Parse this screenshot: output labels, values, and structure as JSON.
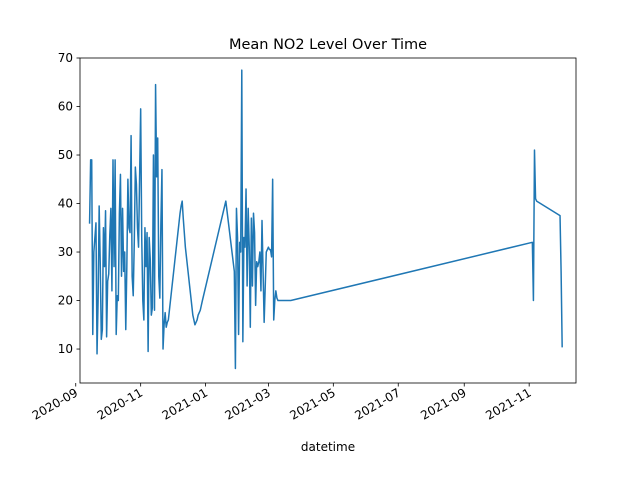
{
  "chart_data": {
    "type": "line",
    "title": "Mean NO2 Level Over Time",
    "xlabel": "datetime",
    "ylabel": "",
    "ylim": [
      3,
      70
    ],
    "xlim": [
      "2020-09-05",
      "2021-12-15"
    ],
    "grid": false,
    "legend": "none",
    "colors": {
      "line": "#1f77b4",
      "axes": "#000000",
      "background": "#ffffff"
    },
    "x_tick_labels": [
      "2020-09",
      "2020-11",
      "2021-01",
      "2021-03",
      "2021-05",
      "2021-07",
      "2021-09",
      "2021-11"
    ],
    "y_tick_labels": [
      "10",
      "20",
      "30",
      "40",
      "50",
      "60",
      "70"
    ],
    "series": [
      {
        "x": [
          "2020-09-14",
          "2020-09-15",
          "2020-09-16",
          "2020-09-17",
          "2020-09-18",
          "2020-09-20",
          "2020-09-21",
          "2020-09-22",
          "2020-09-23",
          "2020-09-24",
          "2020-09-25",
          "2020-09-26",
          "2020-09-27",
          "2020-09-28",
          "2020-09-29",
          "2020-09-30",
          "2020-10-01",
          "2020-10-02",
          "2020-10-03",
          "2020-10-04",
          "2020-10-05",
          "2020-10-06",
          "2020-10-07",
          "2020-10-08",
          "2020-10-09",
          "2020-10-10",
          "2020-10-11",
          "2020-10-12",
          "2020-10-13",
          "2020-10-14",
          "2020-10-15",
          "2020-10-16",
          "2020-10-17",
          "2020-10-18",
          "2020-10-19",
          "2020-10-20",
          "2020-10-21",
          "2020-10-22",
          "2020-10-23",
          "2020-10-24",
          "2020-10-25",
          "2020-10-26",
          "2020-10-27",
          "2020-10-28",
          "2020-10-29",
          "2020-10-30",
          "2020-10-31",
          "2020-11-01",
          "2020-11-02",
          "2020-11-03",
          "2020-11-04",
          "2020-11-05",
          "2020-11-06",
          "2020-11-07",
          "2020-11-08",
          "2020-11-09",
          "2020-11-10",
          "2020-11-11",
          "2020-11-12",
          "2020-11-13",
          "2020-11-14",
          "2020-11-15",
          "2020-11-16",
          "2020-11-17",
          "2020-11-18",
          "2020-11-19",
          "2020-11-20",
          "2020-11-21",
          "2020-11-22",
          "2020-11-23",
          "2020-11-24",
          "2020-11-25",
          "2020-11-26",
          "2020-11-27",
          "2020-11-28",
          "2020-11-29",
          "2020-11-30",
          "2020-12-01",
          "2020-12-02",
          "2020-12-03",
          "2020-12-04",
          "2020-12-05",
          "2020-12-06",
          "2020-12-07",
          "2020-12-08",
          "2020-12-09",
          "2020-12-10",
          "2020-12-11",
          "2020-12-12",
          "2020-12-13",
          "2020-12-14",
          "2020-12-15",
          "2020-12-16",
          "2020-12-17",
          "2020-12-18",
          "2020-12-19",
          "2020-12-20",
          "2020-12-21",
          "2020-12-22",
          "2020-12-23",
          "2020-12-24",
          "2020-12-25",
          "2020-12-26",
          "2020-12-27",
          "2020-12-28",
          "2020-12-29",
          "2021-01-20",
          "2021-01-28",
          "2021-01-29",
          "2021-01-30",
          "2021-01-31",
          "2021-02-01",
          "2021-02-02",
          "2021-02-03",
          "2021-02-04",
          "2021-02-05",
          "2021-02-06",
          "2021-02-07",
          "2021-02-08",
          "2021-02-09",
          "2021-02-10",
          "2021-02-11",
          "2021-02-12",
          "2021-02-13",
          "2021-02-14",
          "2021-02-15",
          "2021-02-16",
          "2021-02-17",
          "2021-02-18",
          "2021-02-19",
          "2021-02-20",
          "2021-02-21",
          "2021-02-22",
          "2021-02-23",
          "2021-02-25",
          "2021-02-27",
          "2021-03-01",
          "2021-03-02",
          "2021-03-03",
          "2021-03-04",
          "2021-03-05",
          "2021-03-06",
          "2021-03-07",
          "2021-03-08",
          "2021-03-09",
          "2021-03-10",
          "2021-03-12",
          "2021-03-14",
          "2021-03-16",
          "2021-03-17",
          "2021-03-18",
          "2021-03-19",
          "2021-03-20",
          "2021-03-21",
          "2021-03-22",
          "2021-11-04",
          "2021-11-05",
          "2021-11-06",
          "2021-11-07",
          "2021-11-08",
          "2021-11-30",
          "2021-12-01",
          "2021-12-02"
        ],
        "values": [
          36,
          49,
          49,
          13,
          30,
          36,
          9,
          20,
          39.5,
          28,
          12,
          14,
          35,
          27,
          38.5,
          12.5,
          24,
          25.5,
          33.5,
          39,
          22,
          49,
          27,
          49,
          13,
          21,
          20,
          38,
          46,
          25,
          39,
          26,
          30,
          14,
          27,
          45,
          35,
          34,
          54,
          25,
          21,
          32,
          47.5,
          44,
          35,
          31,
          45.5,
          59.5,
          33,
          20,
          16,
          35,
          27,
          34,
          9.5,
          33,
          28.5,
          17,
          18.5,
          50,
          18,
          64.5,
          45.5,
          53.5,
          25,
          20.5,
          36,
          47,
          10,
          15,
          17.5,
          14.5,
          15.5,
          16,
          18,
          20,
          22,
          24,
          26,
          28,
          30,
          32,
          34,
          36,
          38,
          39.5,
          40.5,
          37,
          34,
          31,
          29,
          27,
          25,
          23,
          21,
          19,
          17,
          16,
          15,
          15.5,
          16,
          17,
          17.5,
          18,
          19,
          20,
          40.5,
          26,
          6,
          39,
          33,
          13,
          32,
          30,
          67.5,
          11.5,
          33,
          31,
          43,
          23,
          39,
          31,
          14.5,
          37,
          23,
          38,
          34,
          19,
          28,
          27,
          28,
          30,
          22,
          36.5,
          15.5,
          30,
          31,
          30.5,
          30.5,
          29,
          45,
          16,
          20,
          22,
          20.5,
          20,
          20,
          20,
          20,
          20,
          20,
          20,
          20,
          20,
          20,
          32,
          20,
          51,
          41,
          40.5,
          37.5,
          26,
          10.5
        ]
      }
    ]
  }
}
